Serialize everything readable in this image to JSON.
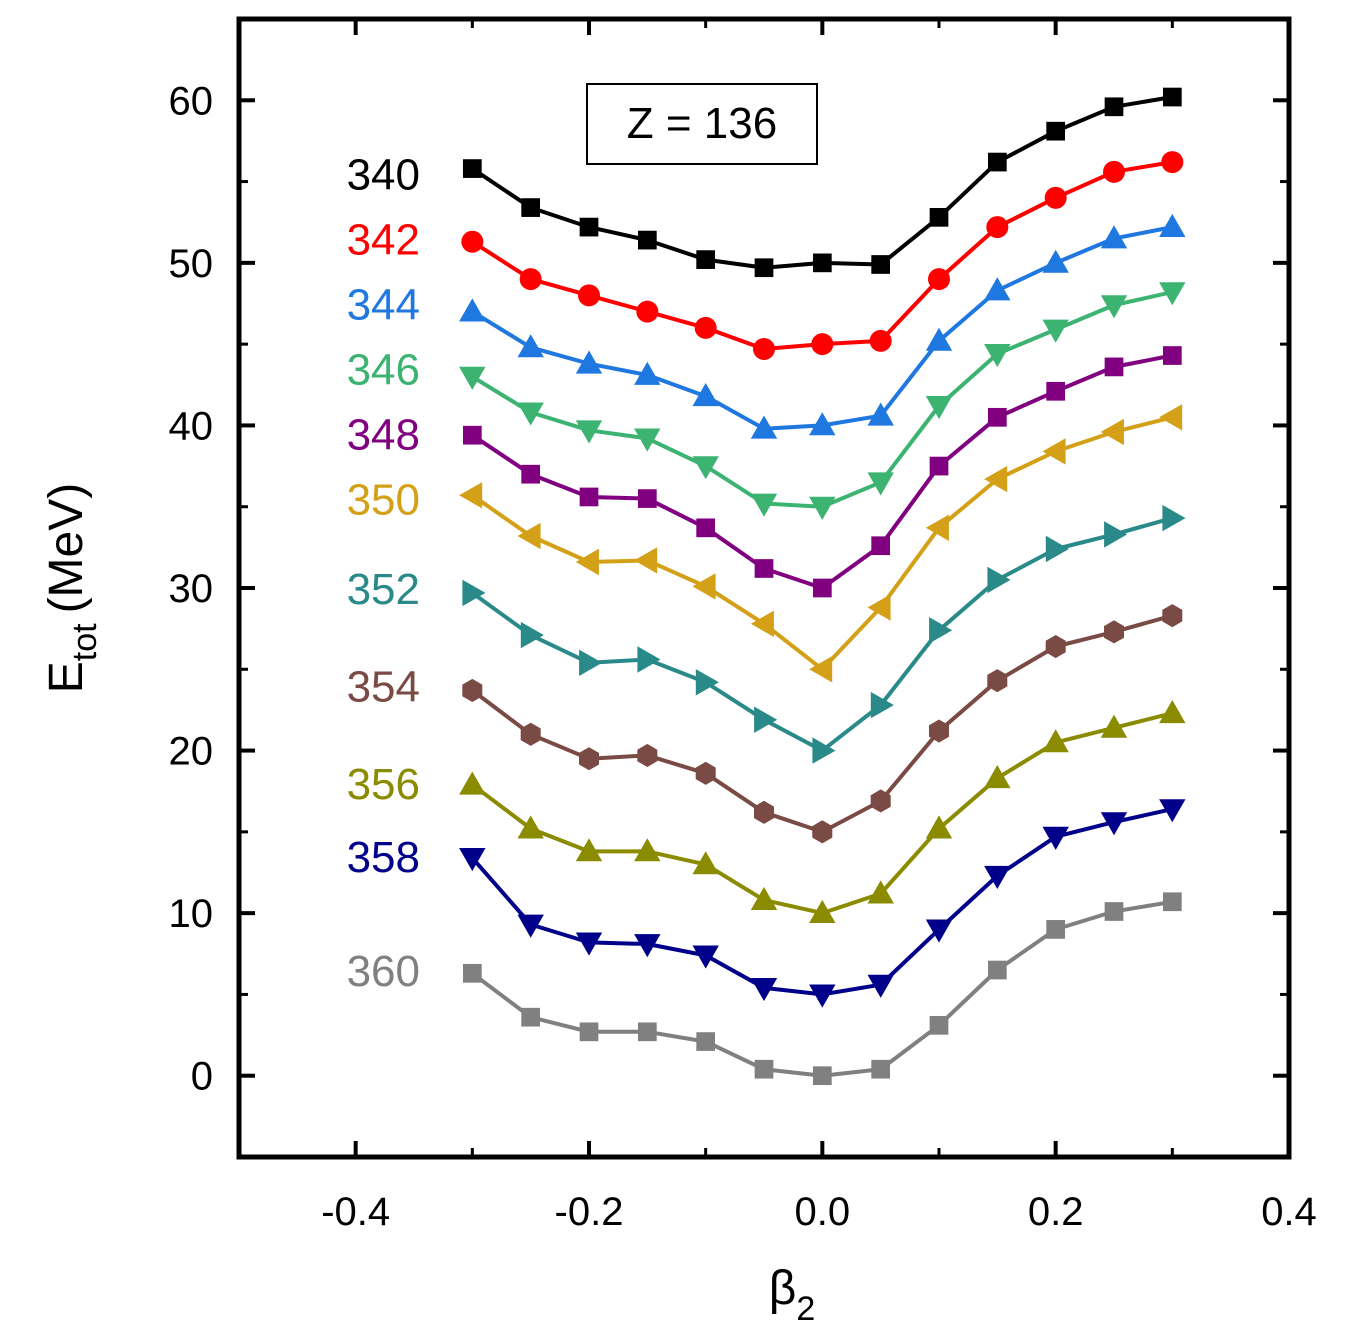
{
  "chart_data": {
    "type": "line",
    "title": "",
    "xlabel": "β",
    "xlabel_sub": "2",
    "ylabel": "E",
    "ylabel_sub": "tot",
    "ylabel_unit": "(MeV)",
    "xlim": [
      -0.5,
      0.4
    ],
    "ylim": [
      -5,
      65
    ],
    "xticks": [
      -0.4,
      -0.2,
      0.0,
      0.2,
      0.4
    ],
    "xtick_labels": [
      "-0.4",
      "-0.2",
      "0.0",
      "0.2",
      "0.4"
    ],
    "yticks": [
      0,
      10,
      20,
      30,
      40,
      50,
      60
    ],
    "ytick_labels": [
      "0",
      "10",
      "20",
      "30",
      "40",
      "50",
      "60"
    ],
    "grid": false,
    "annotation": "Z = 136",
    "x": [
      -0.3,
      -0.25,
      -0.2,
      -0.15,
      -0.1,
      -0.05,
      0.0,
      0.05,
      0.1,
      0.15,
      0.2,
      0.25,
      0.3
    ],
    "series": [
      {
        "name": "340",
        "color": "#000000",
        "marker": "square",
        "label_y": 55.5,
        "values": [
          55.8,
          53.4,
          52.2,
          51.4,
          50.2,
          49.7,
          50.0,
          49.9,
          52.8,
          56.2,
          58.1,
          59.6,
          60.2
        ]
      },
      {
        "name": "342",
        "color": "#ff0000",
        "marker": "circle",
        "label_y": 51.5,
        "values": [
          51.3,
          49.0,
          48.0,
          47.0,
          46.0,
          44.7,
          45.0,
          45.2,
          49.0,
          52.2,
          54.0,
          55.6,
          56.2
        ]
      },
      {
        "name": "344",
        "color": "#1f77e0",
        "marker": "triangle-up",
        "label_y": 47.5,
        "values": [
          47.0,
          44.8,
          43.8,
          43.1,
          41.8,
          39.8,
          40.0,
          40.6,
          45.2,
          48.3,
          50.0,
          51.5,
          52.2
        ]
      },
      {
        "name": "346",
        "color": "#3cb371",
        "marker": "triangle-down",
        "label_y": 43.5,
        "values": [
          43.0,
          40.8,
          39.7,
          39.2,
          37.5,
          35.2,
          35.0,
          36.5,
          41.2,
          44.4,
          45.9,
          47.4,
          48.2
        ]
      },
      {
        "name": "348",
        "color": "#800080",
        "marker": "square",
        "label_y": 39.5,
        "values": [
          39.4,
          37.0,
          35.6,
          35.5,
          33.7,
          31.2,
          30.0,
          32.6,
          37.5,
          40.5,
          42.1,
          43.6,
          44.3
        ]
      },
      {
        "name": "350",
        "color": "#d4a017",
        "marker": "triangle-left",
        "label_y": 35.5,
        "values": [
          35.7,
          33.2,
          31.6,
          31.7,
          30.1,
          27.8,
          25.0,
          28.8,
          33.7,
          36.7,
          38.4,
          39.6,
          40.5
        ]
      },
      {
        "name": "352",
        "color": "#2a8a8a",
        "marker": "triangle-right",
        "label_y": 30.0,
        "values": [
          29.7,
          27.1,
          25.4,
          25.6,
          24.2,
          21.9,
          20.0,
          22.8,
          27.4,
          30.5,
          32.4,
          33.3,
          34.3
        ]
      },
      {
        "name": "354",
        "color": "#7a4a44",
        "marker": "hexagon",
        "label_y": 24.0,
        "values": [
          23.7,
          21.0,
          19.5,
          19.7,
          18.6,
          16.2,
          15.0,
          16.9,
          21.2,
          24.3,
          26.4,
          27.3,
          28.3
        ]
      },
      {
        "name": "356",
        "color": "#8b8b00",
        "marker": "triangle-up",
        "label_y": 18.0,
        "values": [
          17.9,
          15.2,
          13.8,
          13.8,
          13.0,
          10.8,
          10.0,
          11.2,
          15.2,
          18.3,
          20.5,
          21.4,
          22.3
        ]
      },
      {
        "name": "358",
        "color": "#00008b",
        "marker": "triangle-down",
        "label_y": 13.5,
        "values": [
          13.4,
          9.3,
          8.2,
          8.1,
          7.4,
          5.4,
          5.0,
          5.6,
          9.0,
          12.3,
          14.7,
          15.6,
          16.4
        ]
      },
      {
        "name": "360",
        "color": "#808080",
        "marker": "square",
        "label_y": 6.5,
        "values": [
          6.3,
          3.6,
          2.7,
          2.7,
          2.1,
          0.4,
          0.0,
          0.4,
          3.1,
          6.5,
          9.0,
          10.1,
          10.7
        ]
      }
    ]
  }
}
